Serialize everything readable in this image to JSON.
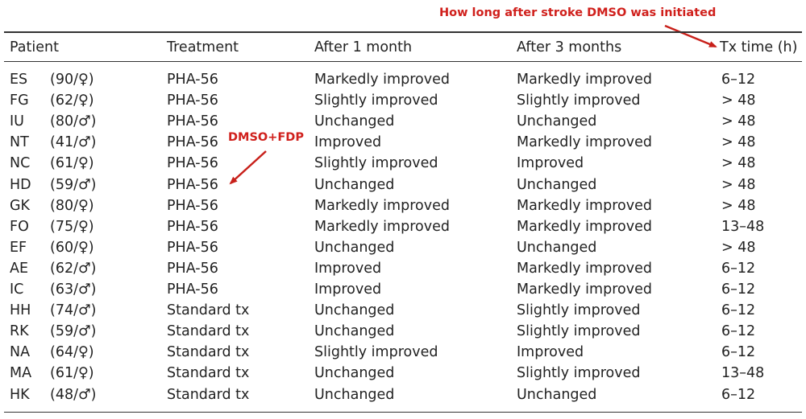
{
  "annotations": {
    "top_note": "How long after stroke DMSO was initiated",
    "mid_note": "DMSO+FDP",
    "color": "#d0201c"
  },
  "table": {
    "headers": {
      "patient": "Patient",
      "treatment": "Treatment",
      "month1": "After 1 month",
      "month3": "After 3 months",
      "tx_time": "Tx time (h)"
    },
    "rows": [
      {
        "initials": "ES",
        "age_sex": "(90/♀)",
        "treatment": "PHA-56",
        "month1": "Markedly improved",
        "month3": "Markedly improved",
        "tx_time": "6–12"
      },
      {
        "initials": "FG",
        "age_sex": "(62/♀)",
        "treatment": "PHA-56",
        "month1": "Slightly improved",
        "month3": "Slightly improved",
        "tx_time": "> 48"
      },
      {
        "initials": "IU",
        "age_sex": "(80/♂)",
        "treatment": "PHA-56",
        "month1": "Unchanged",
        "month3": "Unchanged",
        "tx_time": "> 48"
      },
      {
        "initials": "NT",
        "age_sex": "(41/♂)",
        "treatment": "PHA-56",
        "month1": "Improved",
        "month3": "Markedly improved",
        "tx_time": "> 48"
      },
      {
        "initials": "NC",
        "age_sex": "(61/♀)",
        "treatment": "PHA-56",
        "month1": "Slightly improved",
        "month3": "Improved",
        "tx_time": "> 48"
      },
      {
        "initials": "HD",
        "age_sex": "(59/♂)",
        "treatment": "PHA-56",
        "month1": "Unchanged",
        "month3": "Unchanged",
        "tx_time": "> 48"
      },
      {
        "initials": "GK",
        "age_sex": "(80/♀)",
        "treatment": "PHA-56",
        "month1": "Markedly improved",
        "month3": "Markedly improved",
        "tx_time": "> 48"
      },
      {
        "initials": "FO",
        "age_sex": "(75/♀)",
        "treatment": "PHA-56",
        "month1": "Markedly improved",
        "month3": "Markedly improved",
        "tx_time": "13–48"
      },
      {
        "initials": "EF",
        "age_sex": "(60/♀)",
        "treatment": "PHA-56",
        "month1": "Unchanged",
        "month3": "Unchanged",
        "tx_time": "> 48"
      },
      {
        "initials": "AE",
        "age_sex": "(62/♂)",
        "treatment": "PHA-56",
        "month1": "Improved",
        "month3": "Markedly improved",
        "tx_time": "6–12"
      },
      {
        "initials": "IC",
        "age_sex": "(63/♂)",
        "treatment": "PHA-56",
        "month1": "Improved",
        "month3": "Markedly improved",
        "tx_time": "6–12"
      },
      {
        "initials": "HH",
        "age_sex": "(74/♂)",
        "treatment": "Standard tx",
        "month1": "Unchanged",
        "month3": "Slightly improved",
        "tx_time": "6–12"
      },
      {
        "initials": "RK",
        "age_sex": "(59/♂)",
        "treatment": "Standard tx",
        "month1": "Unchanged",
        "month3": "Slightly improved",
        "tx_time": "6–12"
      },
      {
        "initials": "NA",
        "age_sex": "(64/♀)",
        "treatment": "Standard tx",
        "month1": "Slightly improved",
        "month3": "Improved",
        "tx_time": "6–12"
      },
      {
        "initials": "MA",
        "age_sex": "(61/♀)",
        "treatment": "Standard tx",
        "month1": "Unchanged",
        "month3": "Slightly improved",
        "tx_time": "13–48"
      },
      {
        "initials": "HK",
        "age_sex": "(48/♂)",
        "treatment": "Standard tx",
        "month1": "Unchanged",
        "month3": "Unchanged",
        "tx_time": "6–12"
      }
    ]
  }
}
